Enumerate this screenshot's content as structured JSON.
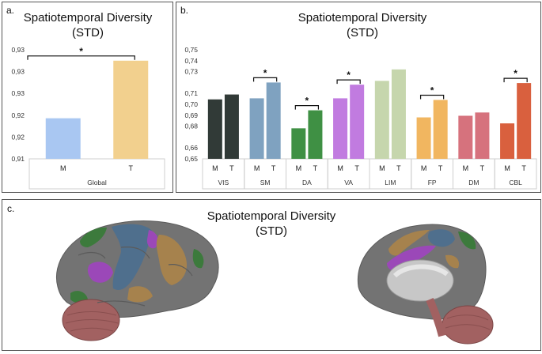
{
  "chart_data": [
    {
      "panel": "a.",
      "type": "bar",
      "title": "Spatiotemporal Diversity",
      "subtitle": "(STD)",
      "ylim": [
        0.91,
        0.935
      ],
      "yticks": [
        0.91,
        0.915,
        0.92,
        0.925,
        0.93,
        0.935
      ],
      "ytick_labels": [
        "0,91",
        "0,92",
        "0,92",
        "0,93",
        "0,93",
        "0,93"
      ],
      "categories": [
        "M",
        "T"
      ],
      "values": [
        0.9193,
        0.9325
      ],
      "colors": [
        "#a9c7f2",
        "#f2d08e"
      ],
      "group_label": "Global",
      "significance": [
        {
          "from": "M",
          "to": "T",
          "label": "*"
        }
      ]
    },
    {
      "panel": "b.",
      "type": "bar",
      "title": "Spatiotemporal Diversity",
      "subtitle": "(STD)",
      "ylim": [
        0.65,
        0.75
      ],
      "yticks": [
        0.65,
        0.66,
        0.68,
        0.69,
        0.7,
        0.71,
        0.73,
        0.74,
        0.75
      ],
      "ytick_labels": [
        "0,65",
        "0,66",
        "0,68",
        "0,69",
        "0,70",
        "0,71",
        "0,73",
        "0,74",
        "0,75"
      ],
      "groups": [
        {
          "name": "VIS",
          "categories": [
            "M",
            "T"
          ],
          "values": [
            0.7045,
            0.709
          ],
          "colors": [
            "#313a37",
            "#313a37"
          ],
          "significant": false
        },
        {
          "name": "SM",
          "categories": [
            "M",
            "T"
          ],
          "values": [
            0.7055,
            0.72
          ],
          "colors": [
            "#7fa2c0",
            "#7fa2c0"
          ],
          "significant": true
        },
        {
          "name": "DA",
          "categories": [
            "M",
            "T"
          ],
          "values": [
            0.678,
            0.6945
          ],
          "colors": [
            "#3f9044",
            "#3f9044"
          ],
          "significant": true
        },
        {
          "name": "VA",
          "categories": [
            "M",
            "T"
          ],
          "values": [
            0.7055,
            0.718
          ],
          "colors": [
            "#c17be0",
            "#c17be0"
          ],
          "significant": true
        },
        {
          "name": "LIM",
          "categories": [
            "M",
            "T"
          ],
          "values": [
            0.7215,
            0.732
          ],
          "colors": [
            "#c6d6ad",
            "#c6d6ad"
          ],
          "significant": false
        },
        {
          "name": "FP",
          "categories": [
            "M",
            "T"
          ],
          "values": [
            0.688,
            0.704
          ],
          "colors": [
            "#f1b660",
            "#f1b660"
          ],
          "significant": true
        },
        {
          "name": "DM",
          "categories": [
            "M",
            "T"
          ],
          "values": [
            0.6895,
            0.6925
          ],
          "colors": [
            "#d6727d",
            "#d6727d"
          ],
          "significant": false
        },
        {
          "name": "CBL",
          "categories": [
            "M",
            "T"
          ],
          "values": [
            0.6825,
            0.7195
          ],
          "colors": [
            "#d9603e",
            "#d9603e"
          ],
          "significant": true
        }
      ],
      "significance_label": "*"
    }
  ],
  "panel_c": {
    "label": "c.",
    "title": "Spatiotemporal Diversity",
    "subtitle": "(STD)",
    "region_colors": {
      "cortex": "#737373",
      "SM": "#4f6f8d",
      "DA": "#3c7a3c",
      "VA": "#9b48b8",
      "FP": "#a6824d",
      "cerebellum": "#a26161",
      "medial": "#c7c7c7"
    }
  }
}
